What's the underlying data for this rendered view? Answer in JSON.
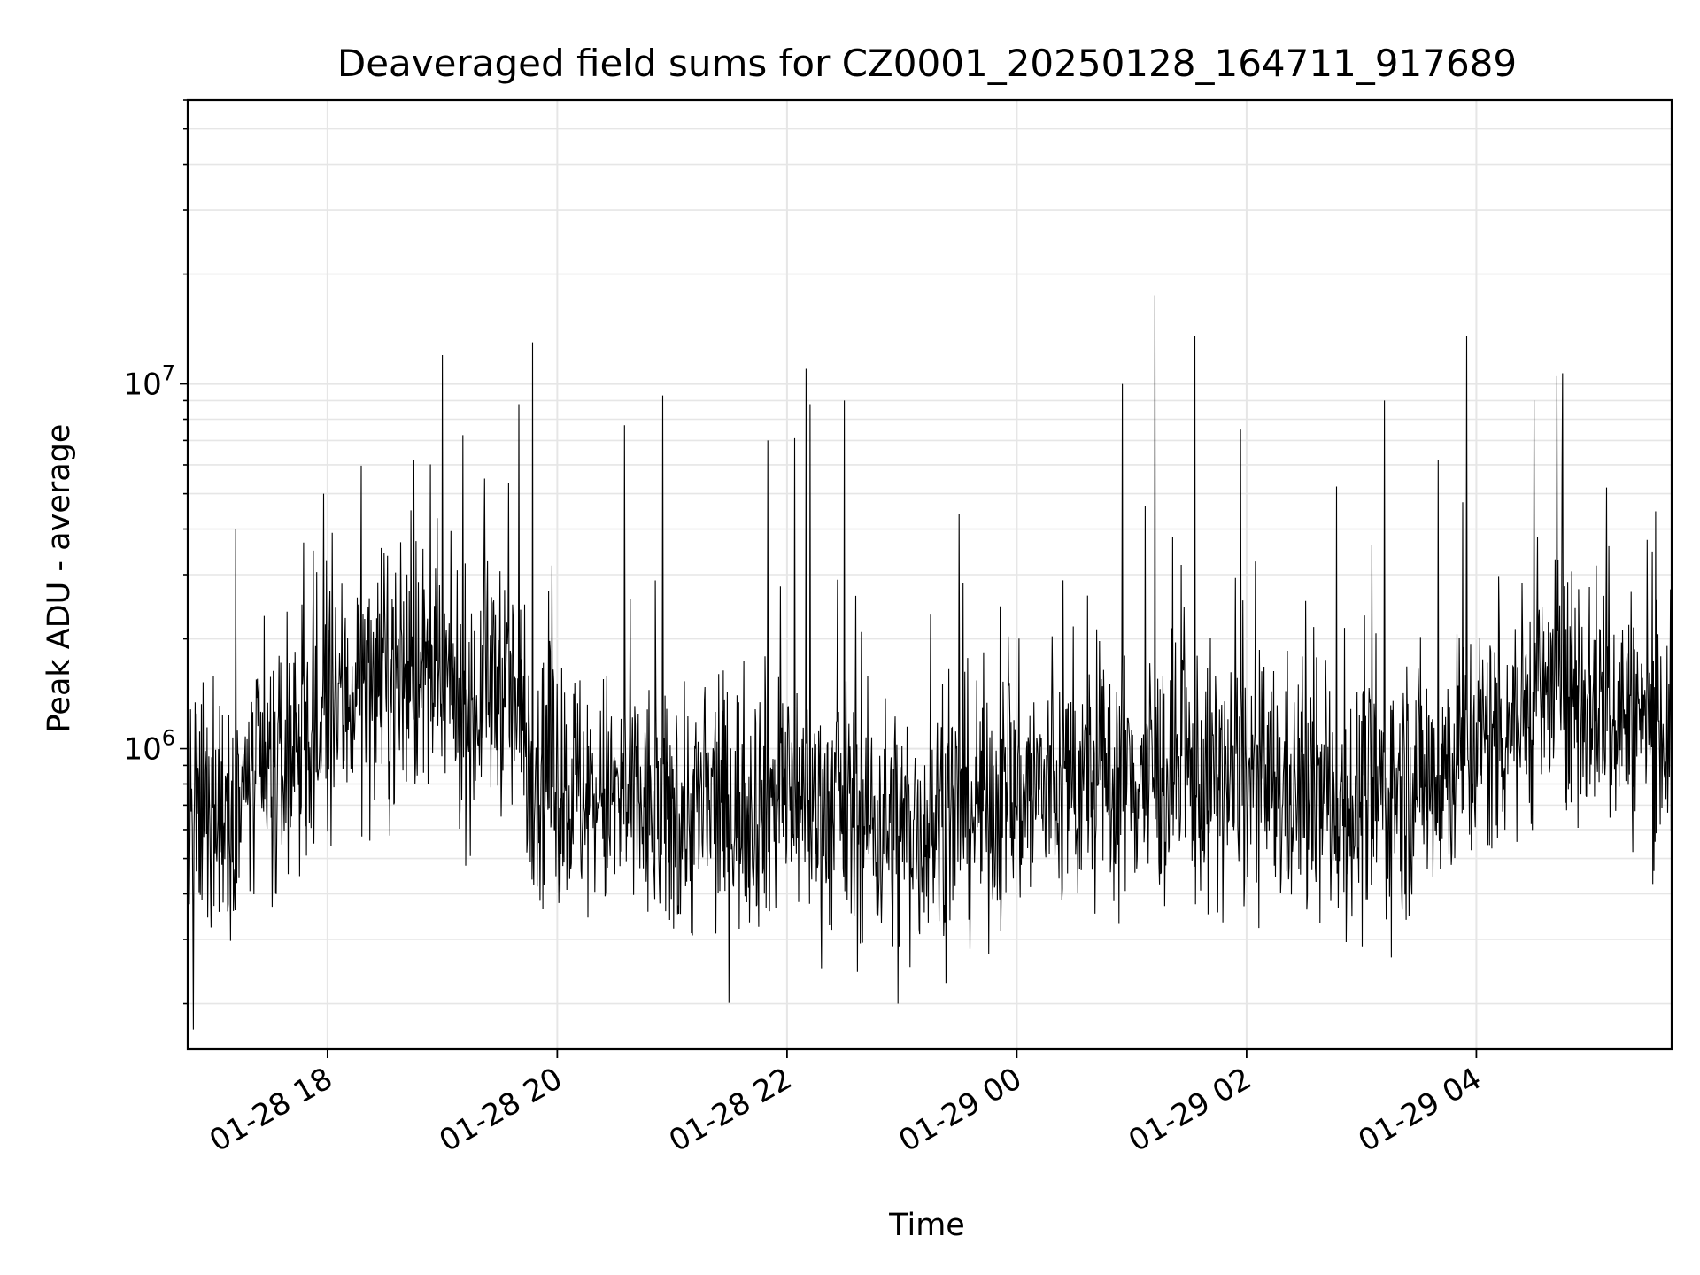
{
  "chart_data": {
    "type": "line",
    "title": "Deaveraged field sums for CZ0001_20250128_164711_917689",
    "xlabel": "Time",
    "ylabel": "Peak ADU - average",
    "x_range": [
      "2025-01-28 16:47",
      "2025-01-29 05:42"
    ],
    "ylim": [
      150000,
      60000000
    ],
    "y_scale": "log",
    "grid": true,
    "line_color": "#000000",
    "grid_color": "#e6e6e6",
    "x_ticks": [
      {
        "value": "2025-01-28 18:00",
        "label": "01-28 18"
      },
      {
        "value": "2025-01-28 20:00",
        "label": "01-28 20"
      },
      {
        "value": "2025-01-28 22:00",
        "label": "01-28 22"
      },
      {
        "value": "2025-01-29 00:00",
        "label": "01-29 00"
      },
      {
        "value": "2025-01-29 02:00",
        "label": "01-29 02"
      },
      {
        "value": "2025-01-29 04:00",
        "label": "01-29 04"
      }
    ],
    "y_ticks": [
      {
        "value": 1000000,
        "base": "10",
        "exp": "6"
      },
      {
        "value": 10000000,
        "base": "10",
        "exp": "7"
      }
    ],
    "series": [
      {
        "color": "#000000",
        "trend": [
          {
            "t": "2025-01-28 16:47",
            "y": 600000
          },
          {
            "t": "2025-01-28 17:15",
            "y": 750000
          },
          {
            "t": "2025-01-28 17:45",
            "y": 900000
          },
          {
            "t": "2025-01-28 18:15",
            "y": 1500000
          },
          {
            "t": "2025-01-28 18:45",
            "y": 1600000
          },
          {
            "t": "2025-01-28 19:15",
            "y": 1300000
          },
          {
            "t": "2025-01-28 19:30",
            "y": 1600000
          },
          {
            "t": "2025-01-28 19:50",
            "y": 900000
          },
          {
            "t": "2025-01-28 20:15",
            "y": 750000
          },
          {
            "t": "2025-01-28 21:00",
            "y": 650000
          },
          {
            "t": "2025-01-28 22:00",
            "y": 750000
          },
          {
            "t": "2025-01-28 23:00",
            "y": 600000
          },
          {
            "t": "2025-01-29 00:00",
            "y": 750000
          },
          {
            "t": "2025-01-29 01:00",
            "y": 850000
          },
          {
            "t": "2025-01-29 02:00",
            "y": 800000
          },
          {
            "t": "2025-01-29 03:00",
            "y": 700000
          },
          {
            "t": "2025-01-29 03:45",
            "y": 900000
          },
          {
            "t": "2025-01-29 04:45",
            "y": 1500000
          },
          {
            "t": "2025-01-29 05:42",
            "y": 1100000
          }
        ],
        "spikes": [
          {
            "t": "2025-01-28 16:50",
            "y": 170000
          },
          {
            "t": "2025-01-28 17:12",
            "y": 4000000
          },
          {
            "t": "2025-01-28 17:58",
            "y": 5000000
          },
          {
            "t": "2025-01-28 18:45",
            "y": 6200000
          },
          {
            "t": "2025-01-28 19:00",
            "y": 12000000
          },
          {
            "t": "2025-01-28 19:22",
            "y": 5500000
          },
          {
            "t": "2025-01-28 19:40",
            "y": 8800000
          },
          {
            "t": "2025-01-28 19:47",
            "y": 13000000
          },
          {
            "t": "2025-01-28 20:35",
            "y": 7700000
          },
          {
            "t": "2025-01-28 20:55",
            "y": 9300000
          },
          {
            "t": "2025-01-28 21:50",
            "y": 7000000
          },
          {
            "t": "2025-01-28 22:04",
            "y": 7100000
          },
          {
            "t": "2025-01-28 22:10",
            "y": 11000000
          },
          {
            "t": "2025-01-28 22:12",
            "y": 8800000
          },
          {
            "t": "2025-01-28 22:30",
            "y": 9000000
          },
          {
            "t": "2025-01-28 22:58",
            "y": 200000
          },
          {
            "t": "2025-01-28 23:30",
            "y": 4400000
          },
          {
            "t": "2025-01-29 00:55",
            "y": 10000000
          },
          {
            "t": "2025-01-29 01:12",
            "y": 17500000
          },
          {
            "t": "2025-01-29 01:33",
            "y": 13500000
          },
          {
            "t": "2025-01-29 01:57",
            "y": 7500000
          },
          {
            "t": "2025-01-29 03:12",
            "y": 9000000
          },
          {
            "t": "2025-01-29 03:40",
            "y": 6200000
          },
          {
            "t": "2025-01-29 03:55",
            "y": 13500000
          },
          {
            "t": "2025-01-29 04:30",
            "y": 9000000
          },
          {
            "t": "2025-01-29 04:42",
            "y": 10500000
          },
          {
            "t": "2025-01-29 04:45",
            "y": 10700000
          },
          {
            "t": "2025-01-29 05:08",
            "y": 5200000
          }
        ]
      }
    ]
  }
}
